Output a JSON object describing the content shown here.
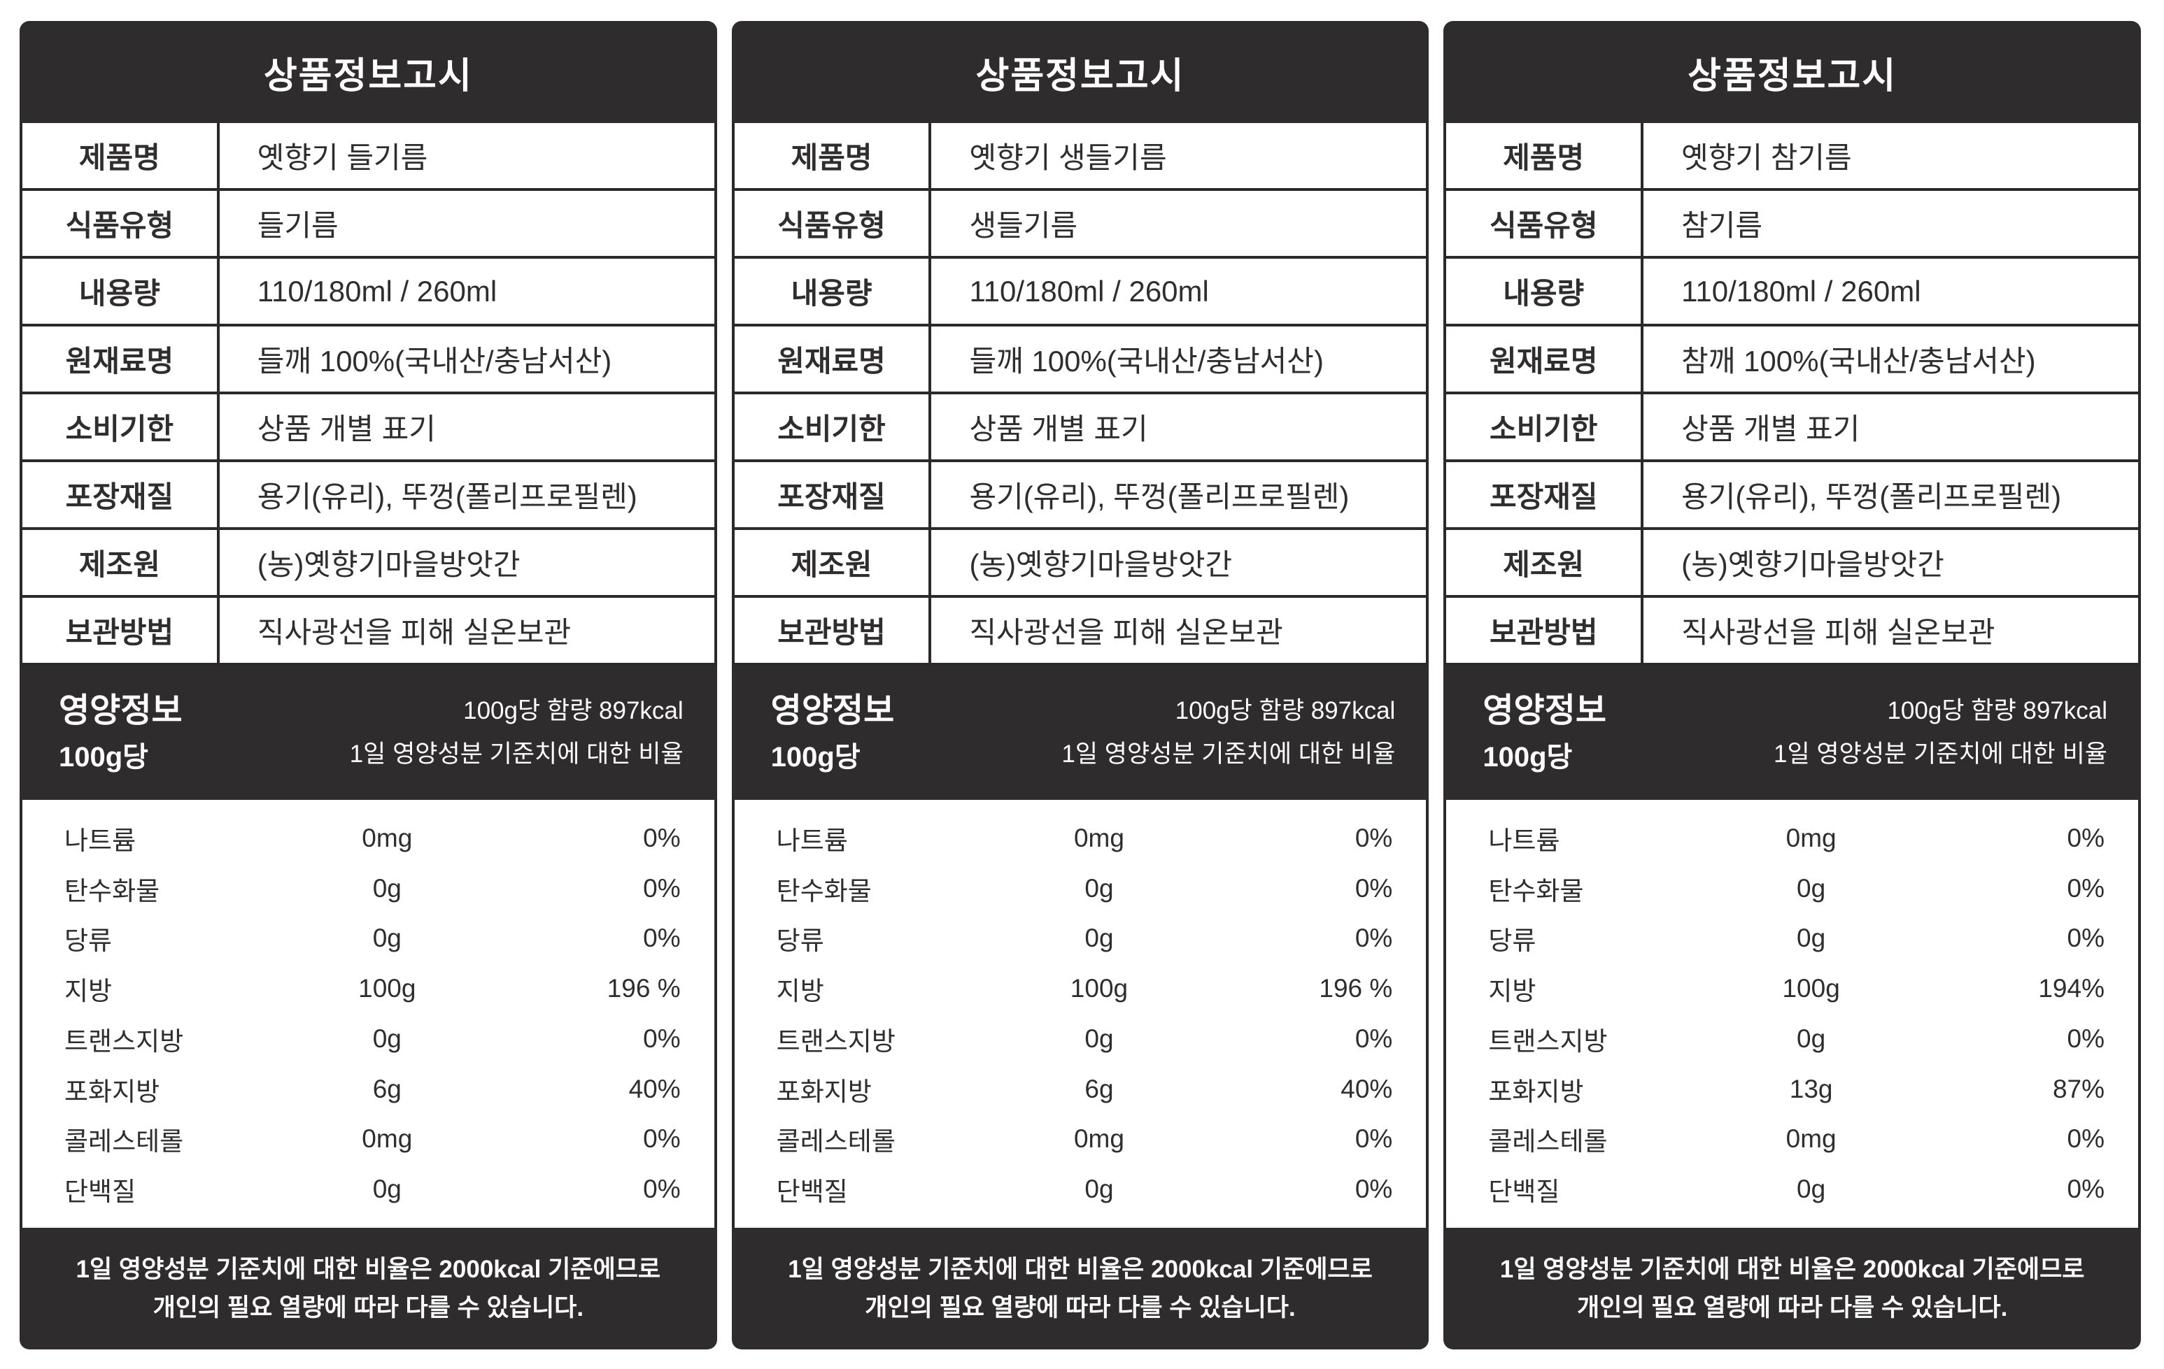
{
  "theme": {
    "dark": "#2e2c2d",
    "line": "#2b292a",
    "ink": "#2f2d2e",
    "background": "#ffffff",
    "text_on_dark": "#ffffff"
  },
  "tables": [
    {
      "title": "상품정보고시",
      "rows": [
        {
          "label": "제품명",
          "value": "옛향기 들기름"
        },
        {
          "label": "식품유형",
          "value": "들기름"
        },
        {
          "label": "내용량",
          "value": "110/180ml / 260ml"
        },
        {
          "label": "원재료명",
          "value": "들깨 100%(국내산/충남서산)"
        },
        {
          "label": "소비기한",
          "value": "상품 개별 표기"
        },
        {
          "label": "포장재질",
          "value": "용기(유리), 뚜껑(폴리프로필렌)"
        },
        {
          "label": "제조원",
          "value": "(농)옛향기마을방앗간"
        },
        {
          "label": "보관방법",
          "value": "직사광선을 피해 실온보관"
        }
      ],
      "nutrition_header": {
        "title": "영양정보",
        "per": "100g당",
        "calories": "100g당 함량 897kcal",
        "ratio_note": "1일 영양성분 기준치에 대한 비율"
      },
      "nutrition": [
        {
          "name": "나트륨",
          "amount": "0mg",
          "percent": "0%"
        },
        {
          "name": "탄수화물",
          "amount": "0g",
          "percent": "0%"
        },
        {
          "name": "당류",
          "amount": "0g",
          "percent": "0%"
        },
        {
          "name": "지방",
          "amount": "100g",
          "percent": "196 %"
        },
        {
          "name": "트랜스지방",
          "amount": "0g",
          "percent": "0%"
        },
        {
          "name": "포화지방",
          "amount": "6g",
          "percent": "40%"
        },
        {
          "name": "콜레스테롤",
          "amount": "0mg",
          "percent": "0%"
        },
        {
          "name": "단백질",
          "amount": "0g",
          "percent": "0%"
        }
      ],
      "footer": [
        "1일 영양성분 기준치에 대한 비율은 2000kcal 기준에므로",
        "개인의 필요 열량에 따라 다를 수 있습니다."
      ]
    },
    {
      "title": "상품정보고시",
      "rows": [
        {
          "label": "제품명",
          "value": "옛향기 생들기름"
        },
        {
          "label": "식품유형",
          "value": "생들기름"
        },
        {
          "label": "내용량",
          "value": "110/180ml / 260ml"
        },
        {
          "label": "원재료명",
          "value": "들깨 100%(국내산/충남서산)"
        },
        {
          "label": "소비기한",
          "value": "상품 개별 표기"
        },
        {
          "label": "포장재질",
          "value": "용기(유리), 뚜껑(폴리프로필렌)"
        },
        {
          "label": "제조원",
          "value": "(농)옛향기마을방앗간"
        },
        {
          "label": "보관방법",
          "value": "직사광선을 피해 실온보관"
        }
      ],
      "nutrition_header": {
        "title": "영양정보",
        "per": "100g당",
        "calories": "100g당 함량 897kcal",
        "ratio_note": "1일 영양성분 기준치에 대한 비율"
      },
      "nutrition": [
        {
          "name": "나트륨",
          "amount": "0mg",
          "percent": "0%"
        },
        {
          "name": "탄수화물",
          "amount": "0g",
          "percent": "0%"
        },
        {
          "name": "당류",
          "amount": "0g",
          "percent": "0%"
        },
        {
          "name": "지방",
          "amount": "100g",
          "percent": "196 %"
        },
        {
          "name": "트랜스지방",
          "amount": "0g",
          "percent": "0%"
        },
        {
          "name": "포화지방",
          "amount": "6g",
          "percent": "40%"
        },
        {
          "name": "콜레스테롤",
          "amount": "0mg",
          "percent": "0%"
        },
        {
          "name": "단백질",
          "amount": "0g",
          "percent": "0%"
        }
      ],
      "footer": [
        "1일 영양성분 기준치에 대한 비율은 2000kcal 기준에므로",
        "개인의 필요 열량에 따라 다를 수 있습니다."
      ]
    },
    {
      "title": "상품정보고시",
      "rows": [
        {
          "label": "제품명",
          "value": "옛향기 참기름"
        },
        {
          "label": "식품유형",
          "value": "참기름"
        },
        {
          "label": "내용량",
          "value": "110/180ml / 260ml"
        },
        {
          "label": "원재료명",
          "value": "참깨 100%(국내산/충남서산)"
        },
        {
          "label": "소비기한",
          "value": "상품 개별 표기"
        },
        {
          "label": "포장재질",
          "value": "용기(유리), 뚜껑(폴리프로필렌)"
        },
        {
          "label": "제조원",
          "value": "(농)옛향기마을방앗간"
        },
        {
          "label": "보관방법",
          "value": "직사광선을 피해 실온보관"
        }
      ],
      "nutrition_header": {
        "title": "영양정보",
        "per": "100g당",
        "calories": "100g당 함량 897kcal",
        "ratio_note": "1일 영양성분 기준치에 대한 비율"
      },
      "nutrition": [
        {
          "name": "나트륨",
          "amount": "0mg",
          "percent": "0%"
        },
        {
          "name": "탄수화물",
          "amount": "0g",
          "percent": "0%"
        },
        {
          "name": "당류",
          "amount": "0g",
          "percent": "0%"
        },
        {
          "name": "지방",
          "amount": "100g",
          "percent": "194%"
        },
        {
          "name": "트랜스지방",
          "amount": "0g",
          "percent": "0%"
        },
        {
          "name": "포화지방",
          "amount": "13g",
          "percent": "87%"
        },
        {
          "name": "콜레스테롤",
          "amount": "0mg",
          "percent": "0%"
        },
        {
          "name": "단백질",
          "amount": "0g",
          "percent": "0%"
        }
      ],
      "footer": [
        "1일 영양성분 기준치에 대한 비율은 2000kcal 기준에므로",
        "개인의 필요 열량에 따라 다를 수 있습니다."
      ]
    }
  ]
}
